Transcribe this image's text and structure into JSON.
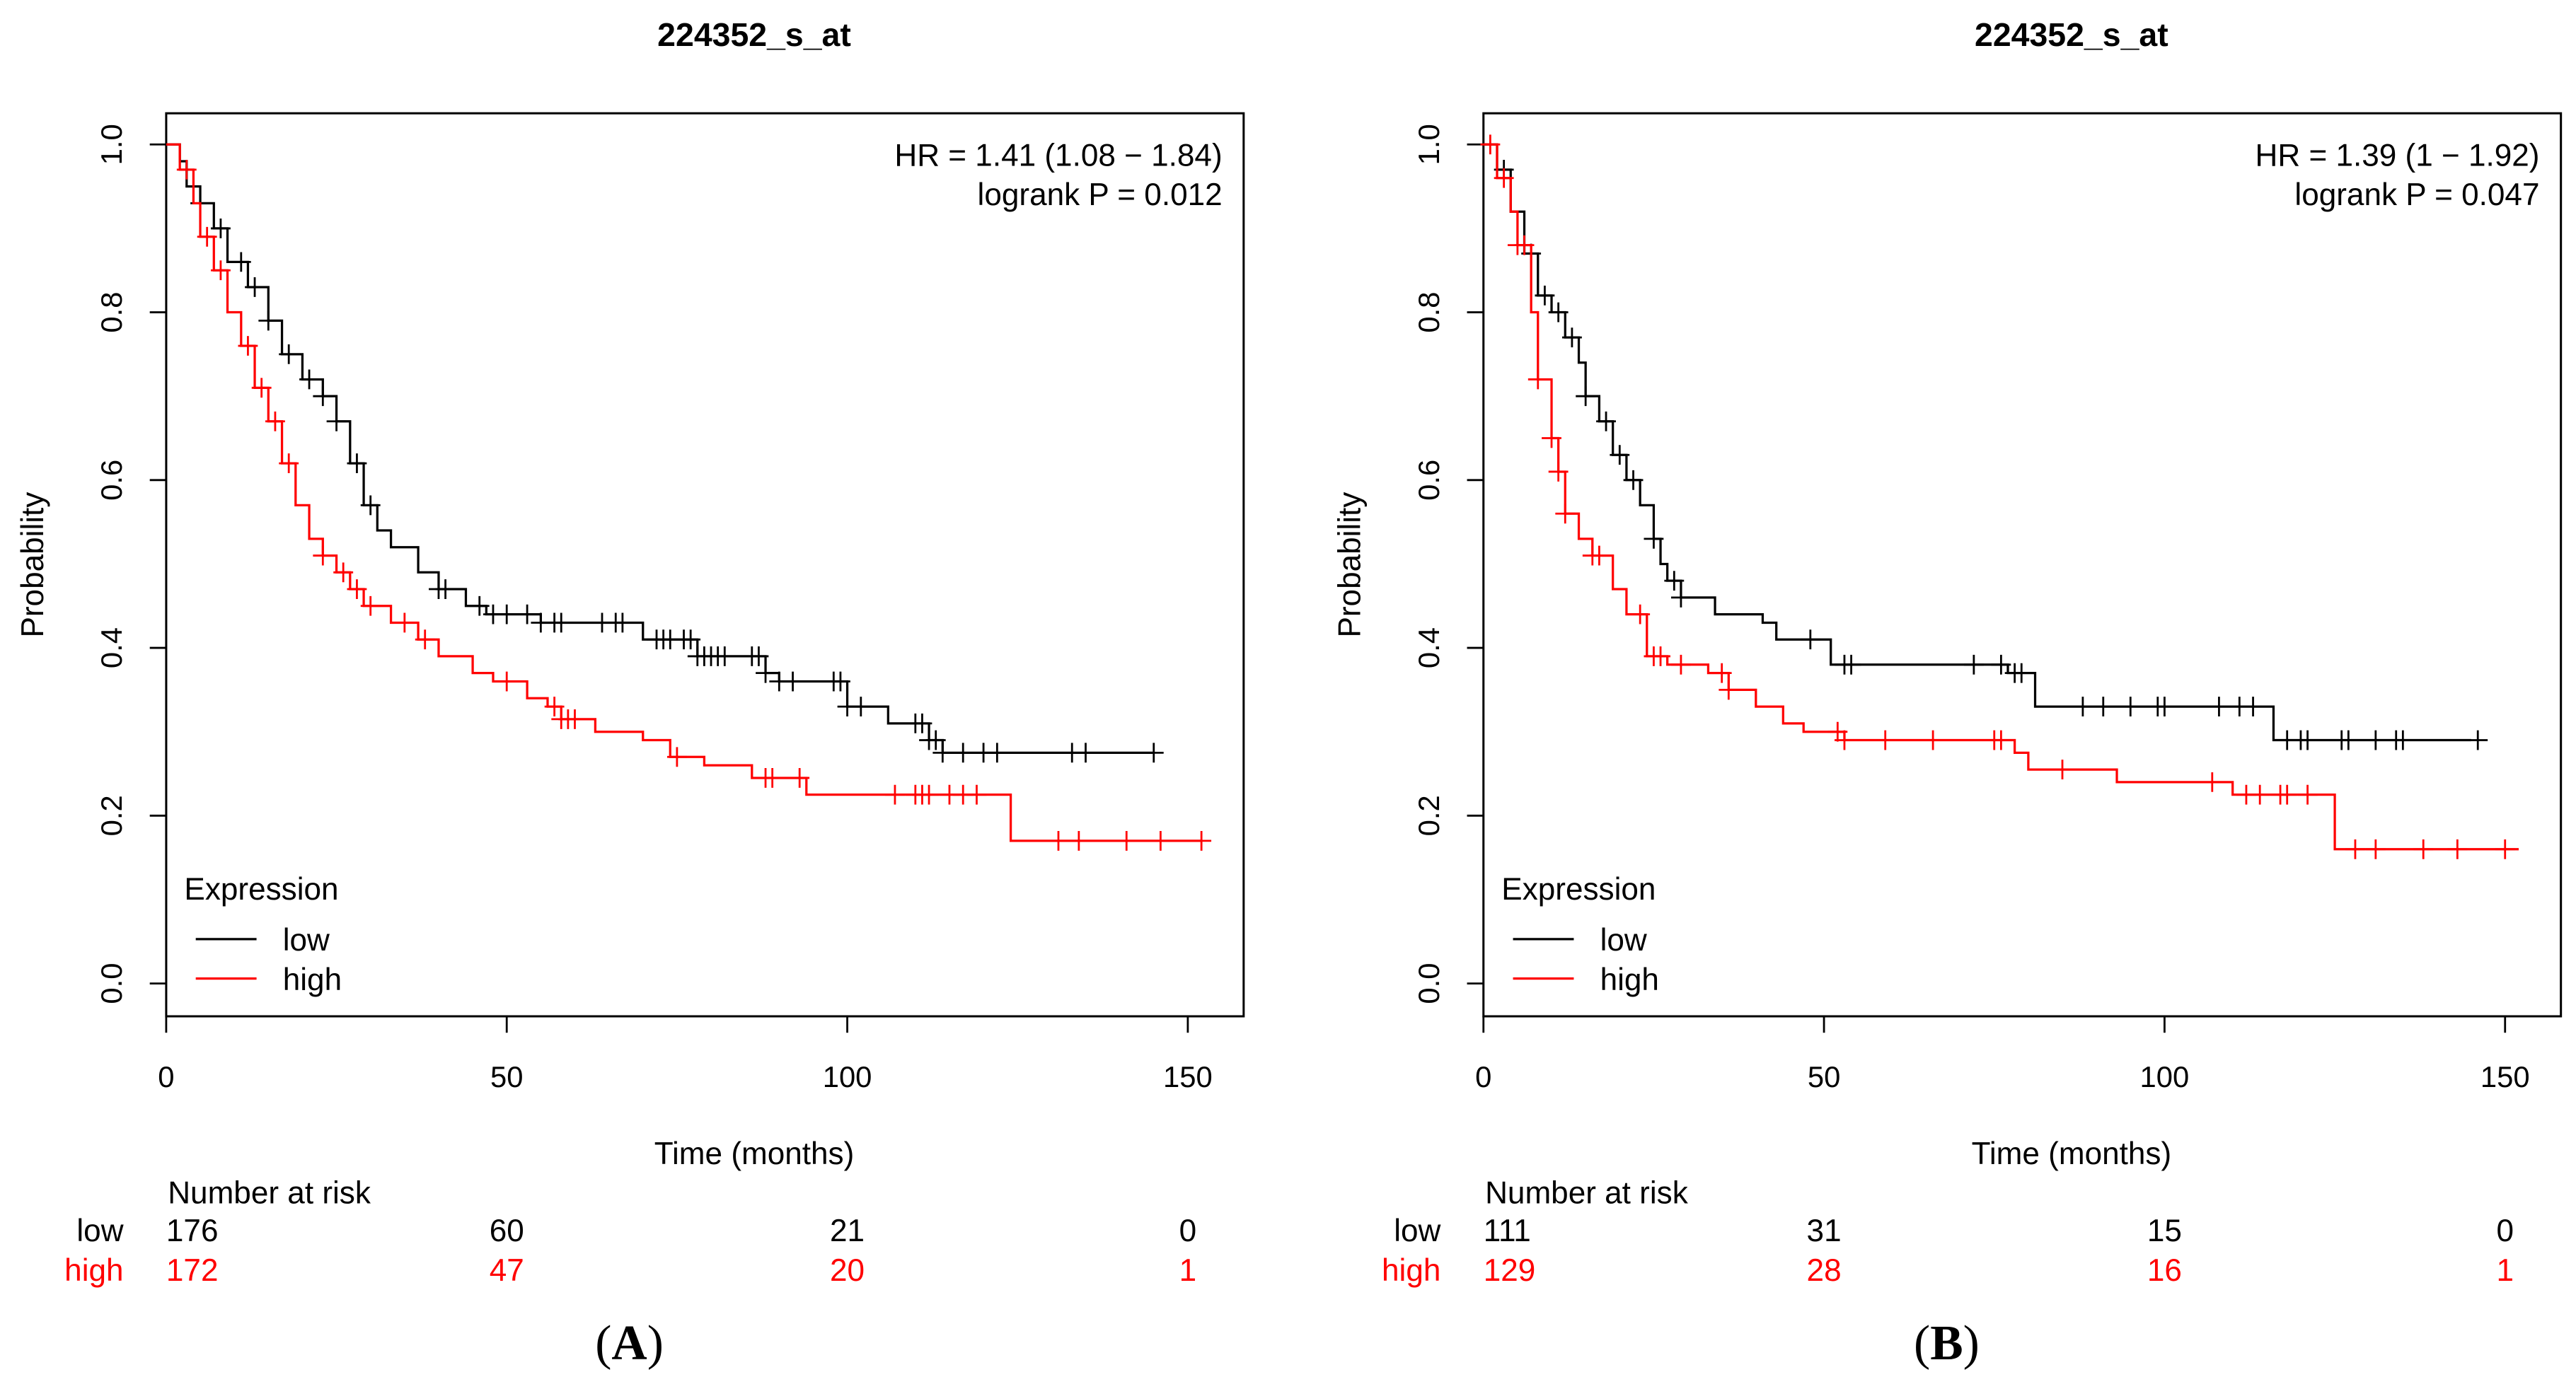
{
  "chart_data": [
    {
      "type": "line",
      "subtype": "kaplan-meier",
      "panel_label": "A",
      "title": "224352_s_at",
      "xlabel": "Time (months)",
      "ylabel": "Probability",
      "xlim": [
        0,
        150
      ],
      "ylim": [
        0,
        1
      ],
      "xticks": [
        "0",
        "50",
        "100",
        "150"
      ],
      "yticks": [
        "0.0",
        "0.2",
        "0.4",
        "0.6",
        "0.8",
        "1.0"
      ],
      "annotation": [
        "HR = 1.41 (1.08 − 1.84)",
        "logrank P = 0.012"
      ],
      "legend": {
        "title": "Expression",
        "placement": "bottom-left",
        "entries": [
          "low",
          "high"
        ]
      },
      "series": [
        {
          "name": "low",
          "color": "#000000",
          "steps": [
            [
              0,
              1
            ],
            [
              2,
              0.98
            ],
            [
              3,
              0.95
            ],
            [
              5,
              0.93
            ],
            [
              7,
              0.9
            ],
            [
              9,
              0.86
            ],
            [
              12,
              0.83
            ],
            [
              15,
              0.79
            ],
            [
              17,
              0.75
            ],
            [
              20,
              0.72
            ],
            [
              23,
              0.7
            ],
            [
              25,
              0.67
            ],
            [
              27,
              0.62
            ],
            [
              29,
              0.57
            ],
            [
              31,
              0.54
            ],
            [
              33,
              0.52
            ],
            [
              37,
              0.49
            ],
            [
              40,
              0.47
            ],
            [
              44,
              0.45
            ],
            [
              47,
              0.44
            ],
            [
              55,
              0.43
            ],
            [
              70,
              0.41
            ],
            [
              78,
              0.39
            ],
            [
              88,
              0.37
            ],
            [
              90,
              0.36
            ],
            [
              100,
              0.33
            ],
            [
              106,
              0.31
            ],
            [
              112,
              0.29
            ],
            [
              114,
              0.275
            ],
            [
              145,
              0.275
            ]
          ],
          "censored": [
            5,
            8,
            11,
            13,
            15,
            18,
            21,
            23,
            25,
            28,
            30,
            40,
            41,
            46,
            48,
            50,
            53,
            55,
            57,
            58,
            64,
            66,
            67,
            72,
            73,
            74,
            76,
            77,
            78,
            79,
            80,
            81,
            82,
            86,
            87,
            88,
            90,
            92,
            98,
            99,
            100,
            102,
            110,
            111,
            112,
            113,
            114,
            117,
            120,
            122,
            133,
            135,
            145
          ]
        },
        {
          "name": "high",
          "color": "#ff0000",
          "steps": [
            [
              0,
              1
            ],
            [
              2,
              0.97
            ],
            [
              4,
              0.93
            ],
            [
              5,
              0.89
            ],
            [
              7,
              0.85
            ],
            [
              9,
              0.8
            ],
            [
              11,
              0.76
            ],
            [
              13,
              0.71
            ],
            [
              15,
              0.67
            ],
            [
              17,
              0.62
            ],
            [
              19,
              0.57
            ],
            [
              21,
              0.53
            ],
            [
              23,
              0.51
            ],
            [
              25,
              0.49
            ],
            [
              27,
              0.47
            ],
            [
              29,
              0.45
            ],
            [
              33,
              0.43
            ],
            [
              37,
              0.41
            ],
            [
              40,
              0.39
            ],
            [
              45,
              0.37
            ],
            [
              48,
              0.36
            ],
            [
              53,
              0.34
            ],
            [
              56,
              0.33
            ],
            [
              58,
              0.315
            ],
            [
              63,
              0.3
            ],
            [
              70,
              0.29
            ],
            [
              74,
              0.27
            ],
            [
              79,
              0.26
            ],
            [
              86,
              0.245
            ],
            [
              94,
              0.225
            ],
            [
              124,
              0.17
            ],
            [
              152,
              0.17
            ]
          ],
          "censored": [
            3,
            6,
            8,
            12,
            14,
            16,
            18,
            23,
            26,
            28,
            30,
            35,
            38,
            50,
            57,
            58,
            59,
            60,
            75,
            88,
            89,
            93,
            107,
            110,
            111,
            112,
            115,
            117,
            119,
            131,
            134,
            141,
            146,
            152
          ]
        }
      ],
      "risk_table": {
        "title": "Number at risk",
        "times": [
          0,
          50,
          100,
          150
        ],
        "rows": [
          {
            "label": "low",
            "color": "#000000",
            "values": [
              "176",
              "60",
              "21",
              "0"
            ]
          },
          {
            "label": "high",
            "color": "#ff0000",
            "values": [
              "172",
              "47",
              "20",
              "1"
            ]
          }
        ]
      }
    },
    {
      "type": "line",
      "subtype": "kaplan-meier",
      "panel_label": "B",
      "title": "224352_s_at",
      "xlabel": "Time (months)",
      "ylabel": "Probability",
      "xlim": [
        0,
        150
      ],
      "ylim": [
        0,
        1
      ],
      "xticks": [
        "0",
        "50",
        "100",
        "150"
      ],
      "yticks": [
        "0.0",
        "0.2",
        "0.4",
        "0.6",
        "0.8",
        "1.0"
      ],
      "annotation": [
        "HR = 1.39 (1 − 1.92)",
        "logrank P = 0.047"
      ],
      "legend": {
        "title": "Expression",
        "placement": "bottom-left",
        "entries": [
          "low",
          "high"
        ]
      },
      "series": [
        {
          "name": "low",
          "color": "#000000",
          "steps": [
            [
              0,
              1
            ],
            [
              2,
              0.97
            ],
            [
              4,
              0.92
            ],
            [
              6,
              0.87
            ],
            [
              8,
              0.82
            ],
            [
              10,
              0.8
            ],
            [
              12,
              0.77
            ],
            [
              14,
              0.74
            ],
            [
              15,
              0.7
            ],
            [
              17,
              0.67
            ],
            [
              19,
              0.63
            ],
            [
              21,
              0.6
            ],
            [
              23,
              0.57
            ],
            [
              25,
              0.53
            ],
            [
              26,
              0.5
            ],
            [
              27,
              0.48
            ],
            [
              29,
              0.46
            ],
            [
              34,
              0.44
            ],
            [
              41,
              0.43
            ],
            [
              43,
              0.41
            ],
            [
              51,
              0.38
            ],
            [
              77,
              0.37
            ],
            [
              81,
              0.33
            ],
            [
              116,
              0.29
            ],
            [
              145,
              0.29
            ]
          ],
          "censored": [
            3,
            7,
            9,
            11,
            13,
            15,
            18,
            20,
            22,
            25,
            28,
            29,
            48,
            53,
            54,
            72,
            76,
            78,
            79,
            88,
            91,
            95,
            99,
            100,
            108,
            111,
            113,
            118,
            120,
            121,
            126,
            127,
            131,
            134,
            135,
            146
          ]
        },
        {
          "name": "high",
          "color": "#ff0000",
          "steps": [
            [
              0,
              1
            ],
            [
              2,
              0.96
            ],
            [
              4,
              0.92
            ],
            [
              5,
              0.88
            ],
            [
              7,
              0.8
            ],
            [
              8,
              0.72
            ],
            [
              10,
              0.65
            ],
            [
              11,
              0.61
            ],
            [
              12,
              0.56
            ],
            [
              14,
              0.53
            ],
            [
              16,
              0.51
            ],
            [
              19,
              0.47
            ],
            [
              21,
              0.44
            ],
            [
              24,
              0.39
            ],
            [
              27,
              0.38
            ],
            [
              33,
              0.37
            ],
            [
              36,
              0.35
            ],
            [
              40,
              0.33
            ],
            [
              44,
              0.31
            ],
            [
              47,
              0.3
            ],
            [
              53,
              0.29
            ],
            [
              78,
              0.275
            ],
            [
              80,
              0.255
            ],
            [
              93,
              0.24
            ],
            [
              110,
              0.225
            ],
            [
              125,
              0.16
            ],
            [
              152,
              0.16
            ]
          ],
          "censored": [
            1,
            3,
            5,
            6,
            8,
            10,
            11,
            12,
            16,
            17,
            23,
            25,
            26,
            29,
            35,
            36,
            52,
            53,
            59,
            66,
            75,
            76,
            85,
            107,
            112,
            114,
            117,
            118,
            121,
            128,
            131,
            138,
            143,
            150
          ]
        }
      ],
      "risk_table": {
        "title": "Number at risk",
        "times": [
          0,
          50,
          100,
          150
        ],
        "rows": [
          {
            "label": "low",
            "color": "#000000",
            "values": [
              "111",
              "31",
              "15",
              "0"
            ]
          },
          {
            "label": "high",
            "color": "#ff0000",
            "values": [
              "129",
              "28",
              "16",
              "1"
            ]
          }
        ]
      }
    }
  ]
}
